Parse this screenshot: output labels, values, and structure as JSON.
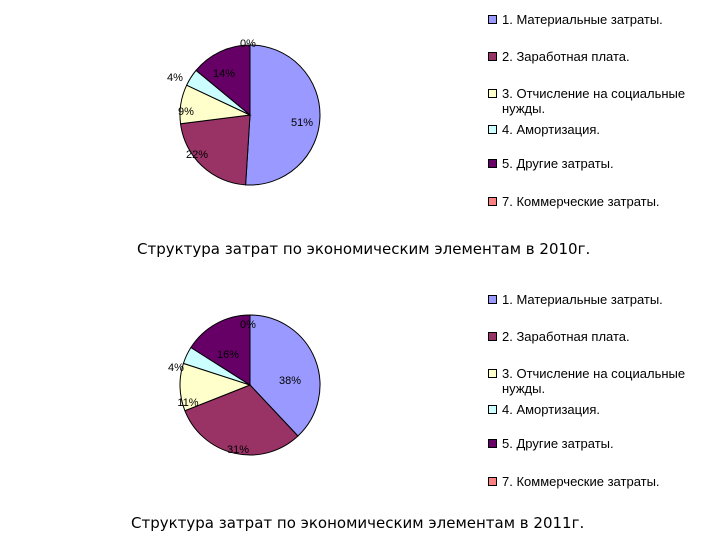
{
  "chart_data": [
    {
      "type": "pie",
      "title": "Структура затрат по экономическим элементам в 2010г.",
      "categories": [
        "1. Материальные затраты.",
        "2. Заработная плата.",
        "3. Отчисление на социальные нужды.",
        "4. Амортизация.",
        "5. Другие затраты.",
        "7. Коммерческие затраты."
      ],
      "values": [
        51,
        22,
        9,
        4,
        14,
        0
      ],
      "labels": [
        "51%",
        "22%",
        "9%",
        "4%",
        "14%",
        "0%"
      ],
      "legend_placement": "right"
    },
    {
      "type": "pie",
      "title": "Структура затрат по экономическим элементам в 2011г.",
      "categories": [
        "1. Материальные затраты.",
        "2. Заработная плата.",
        "3. Отчисление на социальные нужды.",
        "4. Амортизация.",
        "5. Другие затраты.",
        "7. Коммерческие затраты."
      ],
      "values": [
        38,
        31,
        11,
        4,
        16,
        0
      ],
      "labels": [
        "38%",
        "31%",
        "11%",
        "4%",
        "16%",
        "0%"
      ],
      "legend_placement": "right"
    }
  ],
  "legend": {
    "items": [
      {
        "label": "1. Материальные затраты.",
        "color": "#9999ff"
      },
      {
        "label": "2. Заработная плата.",
        "color": "#993366"
      },
      {
        "label": "3. Отчисление на социальные нужды.",
        "color": "#ffffcc"
      },
      {
        "label": "4. Амортизация.",
        "color": "#ccffff"
      },
      {
        "label": "5. Другие затраты.",
        "color": "#660066"
      },
      {
        "label": "7. Коммерческие затраты.",
        "color": "#ff8080"
      }
    ]
  }
}
